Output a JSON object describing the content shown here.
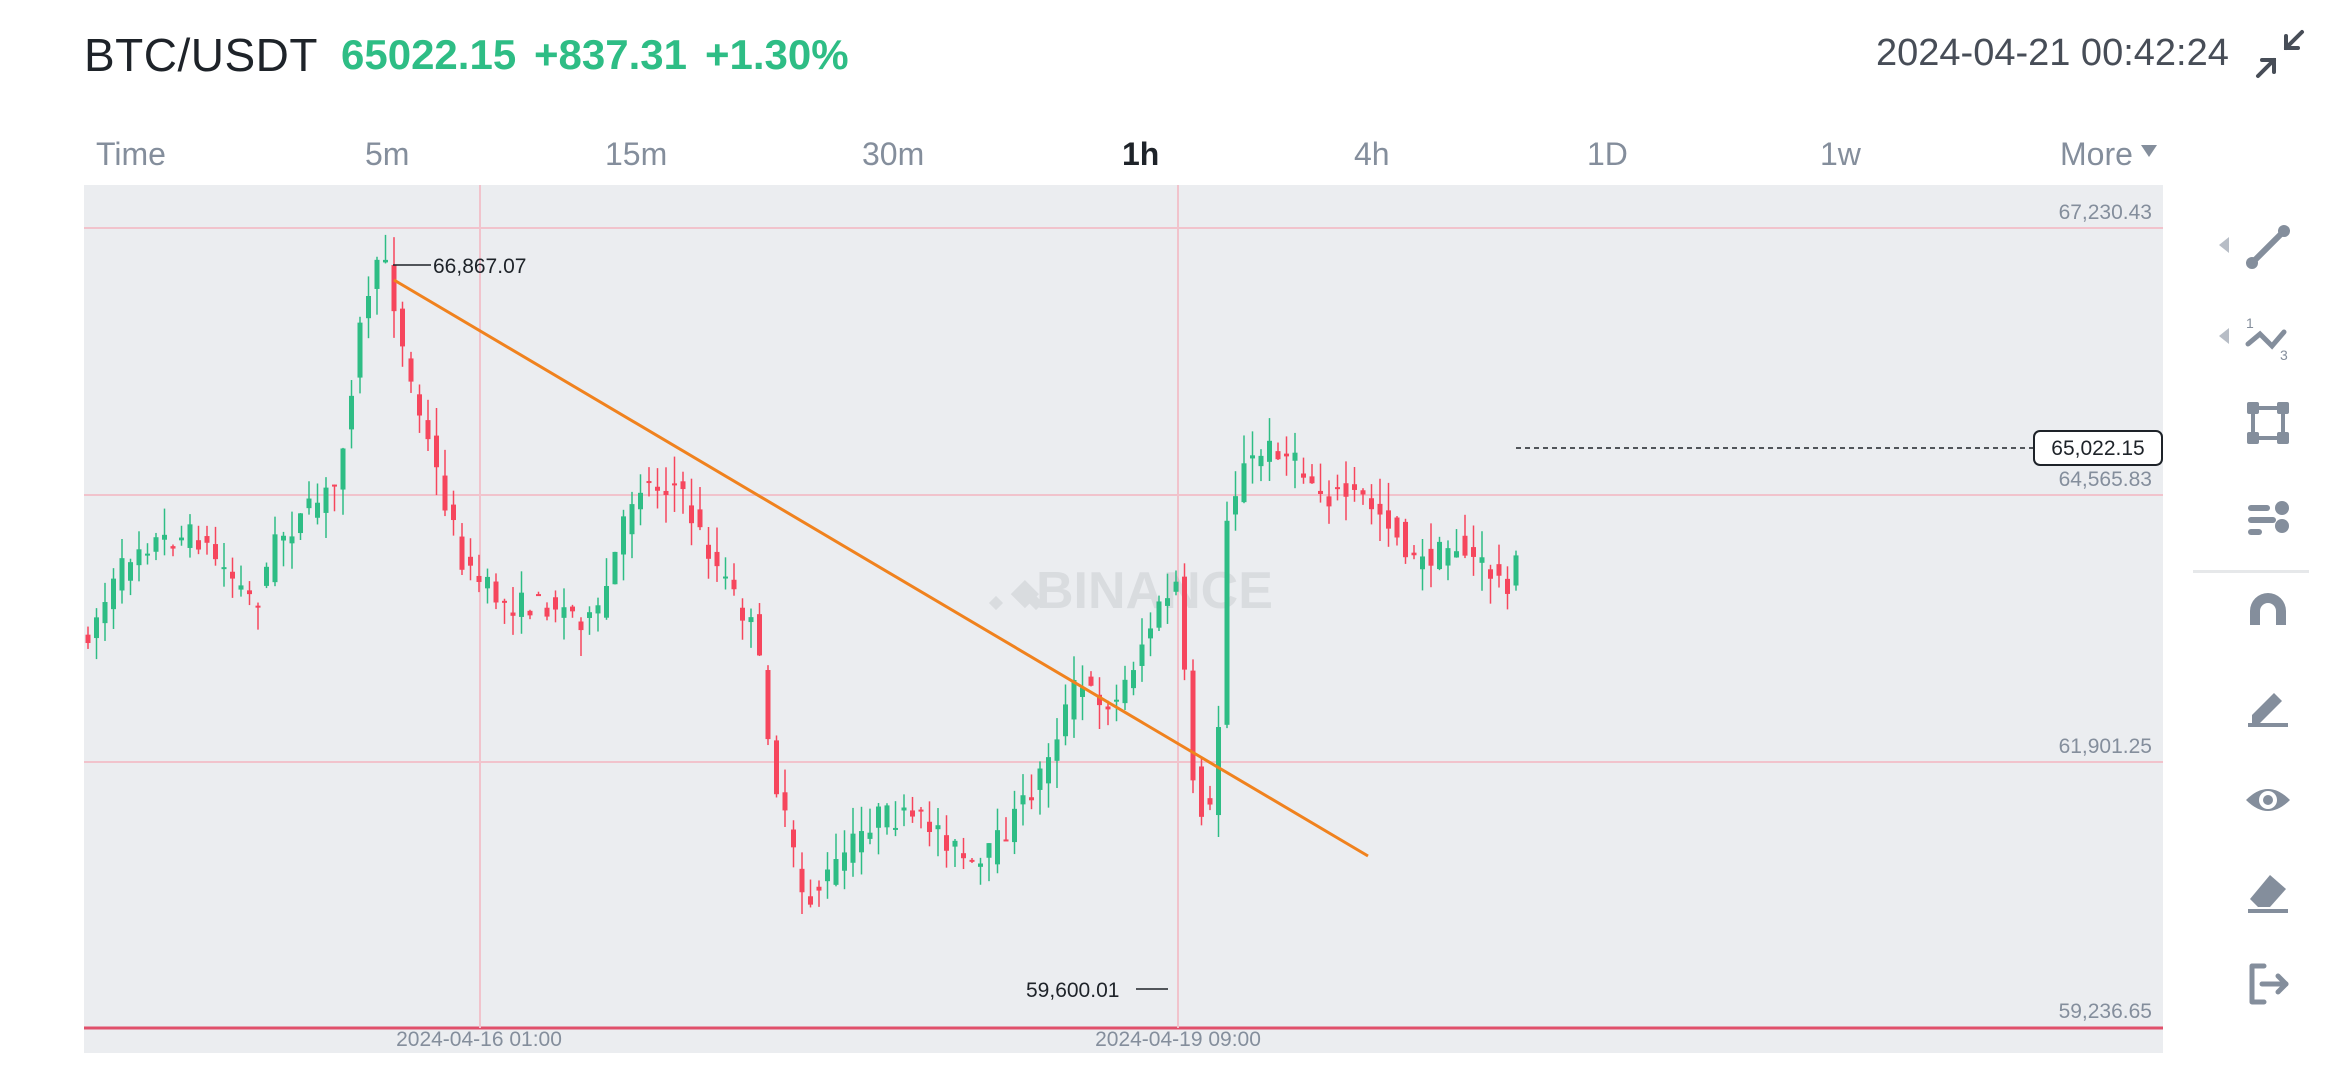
{
  "header": {
    "pair": "BTC/USDT",
    "last_price": "65022.15",
    "change": "+837.31",
    "change_pct": "+1.30%",
    "datetime": "2024-04-21 00:42:24"
  },
  "tabs": [
    {
      "label": "Time",
      "active": false
    },
    {
      "label": "5m",
      "active": false
    },
    {
      "label": "15m",
      "active": false
    },
    {
      "label": "30m",
      "active": false
    },
    {
      "label": "1h",
      "active": true
    },
    {
      "label": "4h",
      "active": false
    },
    {
      "label": "1D",
      "active": false
    },
    {
      "label": "1w",
      "active": false
    },
    {
      "label": "More",
      "active": false
    }
  ],
  "chart": {
    "watermark": "BINANCE",
    "price_levels": [
      "67,230.43",
      "64,565.83",
      "61,901.25",
      "59,236.65"
    ],
    "x_labels": [
      "2024-04-16 01:00",
      "2024-04-19 09:00"
    ],
    "high_marker": "66,867.07",
    "low_marker": "59,600.01",
    "current_price_label": "65,022.15",
    "colors": {
      "up": "#2ebd85",
      "down": "#f6465d",
      "trendline": "#f0821e",
      "grid": "#f1c3cc"
    }
  },
  "chart_data": {
    "type": "candlestick",
    "timeframe": "1h",
    "pair": "BTC/USDT",
    "y_ticks": [
      67230.43,
      64565.83,
      61901.25,
      59236.65
    ],
    "x_ticks": [
      "2024-04-16 01:00",
      "2024-04-19 09:00"
    ],
    "highest": 66867.07,
    "lowest": 59600.01,
    "last": 65022.15
  },
  "toolbar": {
    "icons": [
      "trend-line-icon",
      "fibonacci-icon",
      "rectangle-icon",
      "text-tools-icon",
      "magnet-icon",
      "pencil-icon",
      "eye-icon",
      "eraser-icon",
      "exit-icon"
    ]
  }
}
